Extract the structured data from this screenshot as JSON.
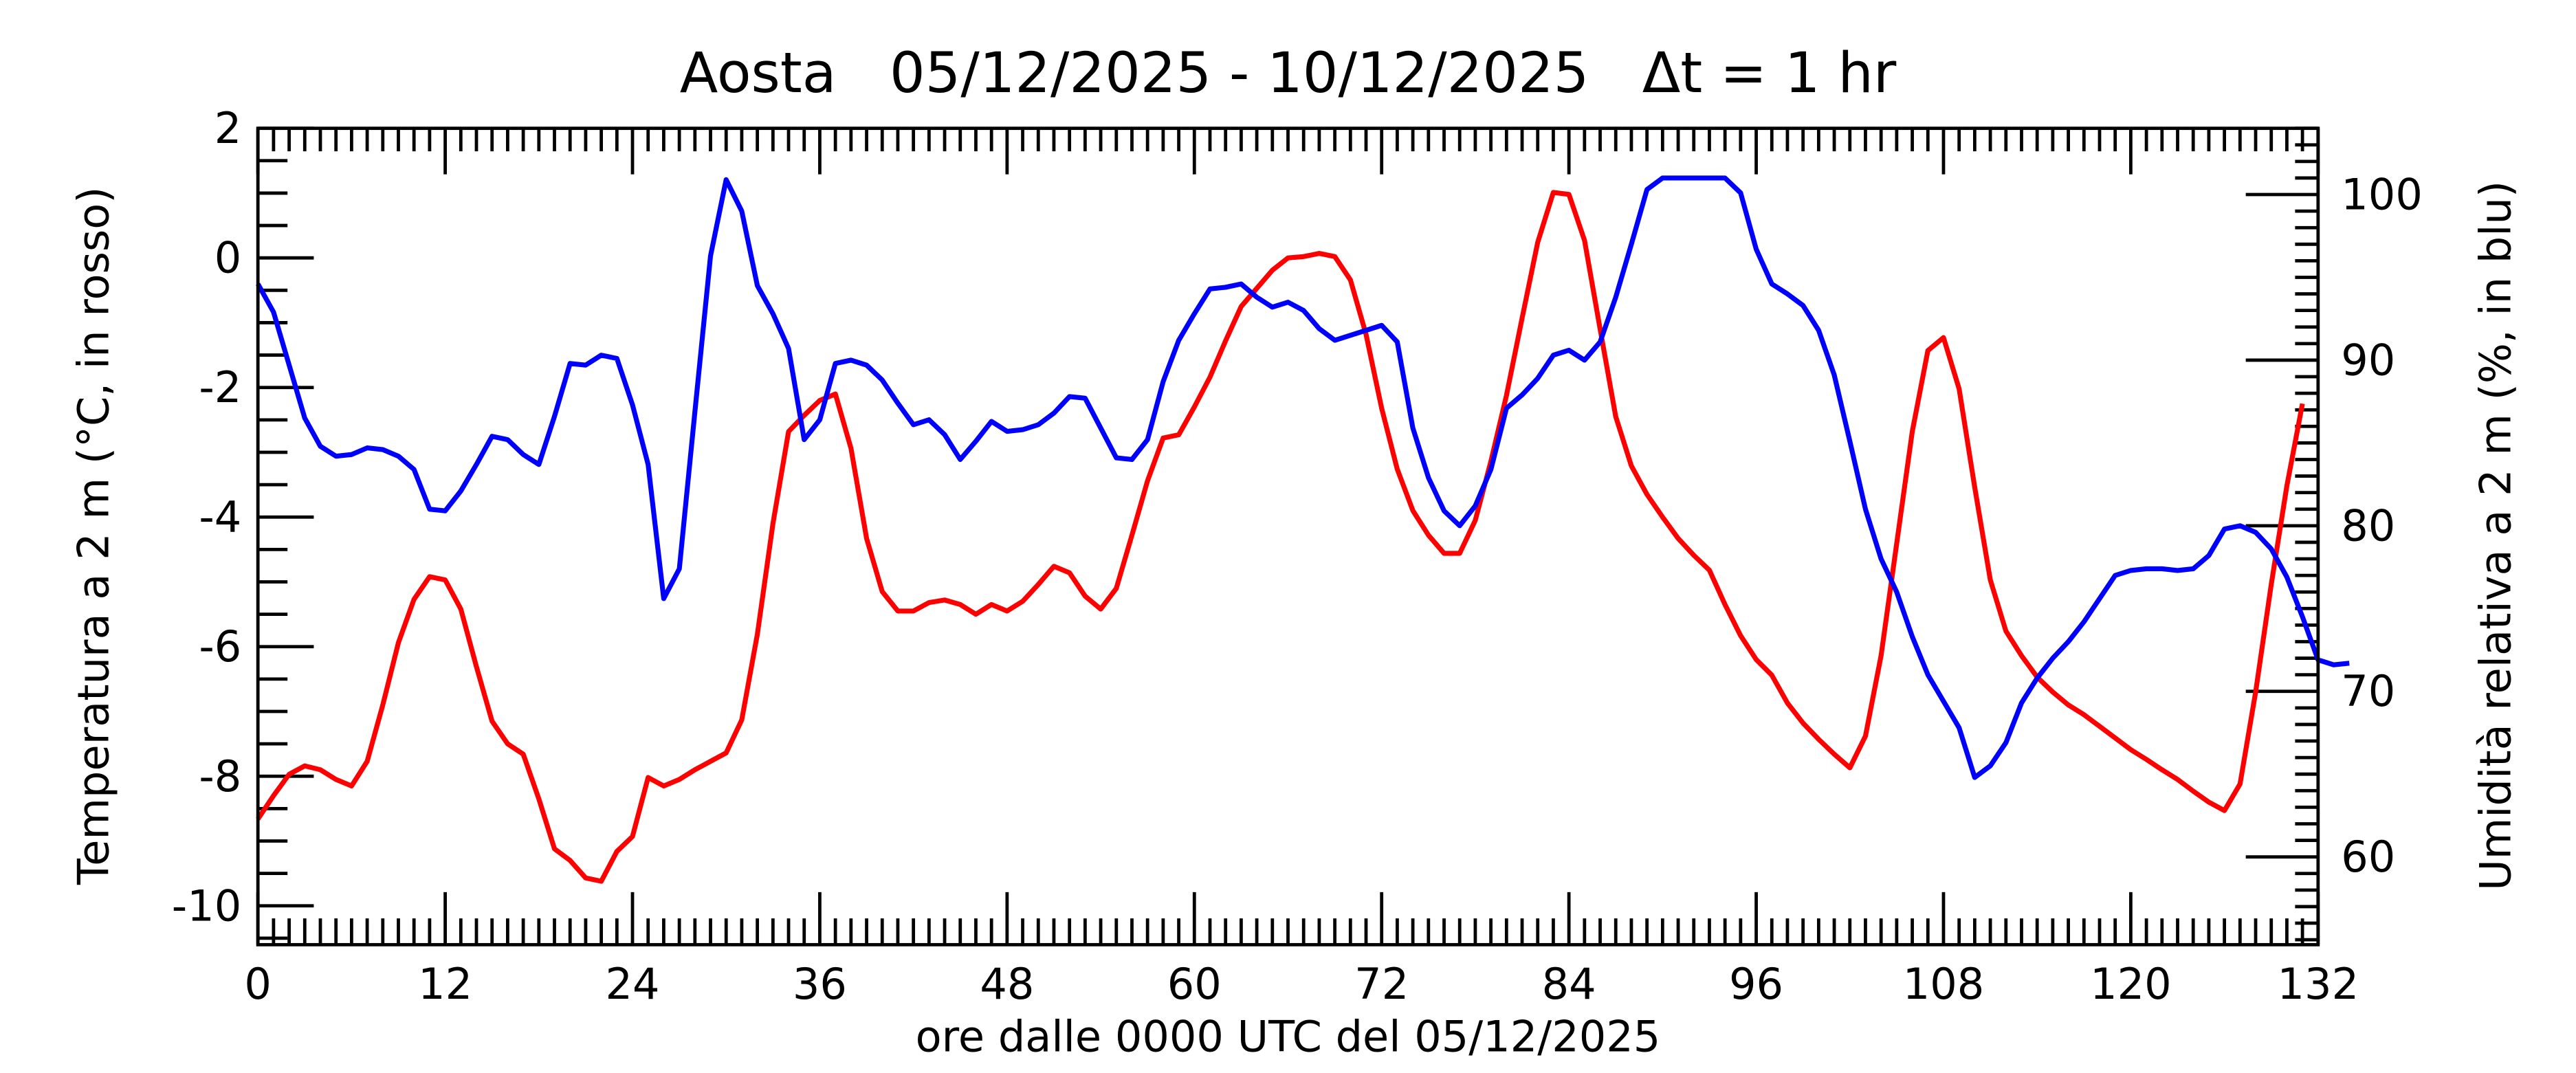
{
  "chart_data": {
    "type": "line",
    "title": "Aosta   05/12/2025 - 10/12/2025   Δt = 1 hr",
    "xlabel": "ore dalle 0000 UTC del 05/12/2025",
    "ylabel_left": "Temperatura a 2 m (°C, in rosso)",
    "ylabel_right": "Umidità relativa a 2 m (%, in blu)",
    "xlim": [
      0,
      132
    ],
    "ylim_left": [
      -10.6,
      2
    ],
    "ylim_right": [
      54.7,
      104
    ],
    "x_ticks": [
      "0",
      "12",
      "24",
      "36",
      "48",
      "60",
      "72",
      "84",
      "96",
      "108",
      "120",
      "132"
    ],
    "y_ticks_left": [
      "2",
      "0",
      "-2",
      "-4",
      "-6",
      "-8",
      "-10"
    ],
    "y_ticks_right": [
      "100",
      "90",
      "80",
      "70",
      "60"
    ],
    "grid": false,
    "colors": {
      "temperature": "#ff0000",
      "humidity": "#0000ff"
    },
    "series": [
      {
        "name": "Temperatura",
        "axis": "left",
        "color": "#ff0000",
        "values": [
          -8.66,
          -8.3,
          -7.97,
          -7.84,
          -7.9,
          -8.05,
          -8.15,
          -7.77,
          -6.9,
          -5.94,
          -5.27,
          -4.92,
          -4.97,
          -5.42,
          -6.31,
          -7.15,
          -7.5,
          -7.66,
          -8.35,
          -9.12,
          -9.3,
          -9.57,
          -9.62,
          -9.16,
          -8.93,
          -8.02,
          -8.15,
          -8.05,
          -7.9,
          -7.77,
          -7.64,
          -7.13,
          -5.81,
          -4.1,
          -2.68,
          -2.43,
          -2.2,
          -2.1,
          -2.94,
          -4.33,
          -5.15,
          -5.45,
          -5.45,
          -5.32,
          -5.28,
          -5.35,
          -5.5,
          -5.35,
          -5.45,
          -5.3,
          -5.04,
          -4.76,
          -4.86,
          -5.22,
          -5.42,
          -5.1,
          -4.28,
          -3.44,
          -2.78,
          -2.73,
          -2.3,
          -1.84,
          -1.28,
          -0.75,
          -0.47,
          -0.19,
          0,
          0.02,
          0.07,
          0.02,
          -0.34,
          -1.18,
          -2.32,
          -3.26,
          -3.9,
          -4.28,
          -4.56,
          -4.56,
          -4.05,
          -3.14,
          -2.12,
          -0.93,
          0.24,
          1.01,
          0.98,
          0.27,
          -1.1,
          -2.45,
          -3.21,
          -3.65,
          -4.0,
          -4.33,
          -4.59,
          -4.82,
          -5.35,
          -5.83,
          -6.2,
          -6.44,
          -6.87,
          -7.18,
          -7.43,
          -7.66,
          -7.87,
          -7.38,
          -6.14,
          -4.41,
          -2.68,
          -1.43,
          -1.23,
          -2.02,
          -3.54,
          -4.97,
          -5.76,
          -6.14,
          -6.47,
          -6.7,
          -6.9,
          -7.05,
          -7.23,
          -7.41,
          -7.59,
          -7.74,
          -7.9,
          -8.05,
          -8.23,
          -8.4,
          -8.53,
          -8.12,
          -6.7,
          -5.04,
          -3.52,
          -2.25
        ]
      },
      {
        "name": "Umidità relativa",
        "axis": "right",
        "color": "#0000ff",
        "values": [
          94.6,
          92.9,
          89.7,
          86.5,
          84.8,
          84.2,
          84.3,
          84.7,
          84.6,
          84.2,
          83.4,
          81.0,
          80.9,
          82.1,
          83.7,
          85.4,
          85.2,
          84.3,
          83.7,
          86.6,
          89.8,
          89.7,
          90.3,
          90.1,
          87.3,
          83.7,
          75.6,
          77.4,
          86.9,
          96.3,
          100.9,
          99.0,
          94.5,
          92.8,
          90.7,
          85.2,
          86.4,
          89.8,
          90.0,
          89.7,
          88.8,
          87.4,
          86.1,
          86.4,
          85.5,
          84.0,
          85.1,
          86.3,
          85.7,
          85.8,
          86.1,
          86.8,
          87.8,
          87.7,
          85.9,
          84.1,
          84.0,
          85.2,
          88.7,
          91.2,
          92.8,
          94.3,
          94.4,
          94.6,
          93.8,
          93.2,
          93.5,
          93.0,
          91.9,
          91.2,
          91.5,
          91.8,
          92.1,
          91.1,
          85.9,
          82.9,
          80.9,
          80.0,
          81.2,
          83.4,
          87.1,
          87.9,
          88.9,
          90.3,
          90.6,
          90.0,
          91.1,
          93.8,
          97.0,
          100.3,
          101.0,
          101.0,
          101.0,
          101.0,
          101.0,
          100.1,
          96.7,
          94.6,
          94.0,
          93.3,
          91.8,
          89.1,
          85.1,
          81.0,
          78.0,
          76.0,
          73.3,
          71.0,
          69.4,
          67.8,
          64.8,
          65.5,
          66.9,
          69.3,
          70.8,
          72.0,
          73.0,
          74.2,
          75.6,
          77.0,
          77.3,
          77.4,
          77.4,
          77.3,
          77.4,
          78.2,
          79.8,
          80.0,
          79.6,
          78.6,
          76.9,
          74.5,
          71.9,
          71.6,
          71.7
        ]
      }
    ]
  }
}
